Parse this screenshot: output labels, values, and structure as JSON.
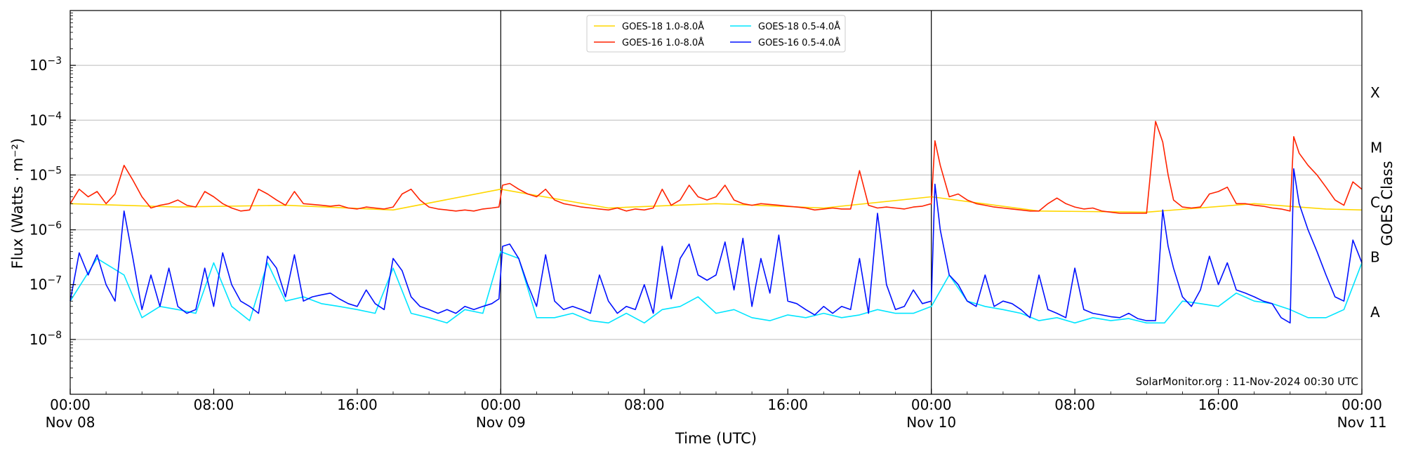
{
  "chart_data": {
    "type": "line",
    "ylabel": "Flux (Watts · m⁻²)",
    "xlabel": "Time (UTC)",
    "right_label": "GOES Class",
    "y_scale": "log",
    "ylim": [
      1e-09,
      0.01
    ],
    "y_ticks": [
      {
        "value": 1e-08,
        "label_base": "10",
        "label_exp": "−8"
      },
      {
        "value": 1e-07,
        "label_base": "10",
        "label_exp": "−7"
      },
      {
        "value": 1e-06,
        "label_base": "10",
        "label_exp": "−6"
      },
      {
        "value": 1e-05,
        "label_base": "10",
        "label_exp": "−5"
      },
      {
        "value": 0.0001,
        "label_base": "10",
        "label_exp": "−4"
      },
      {
        "value": 0.001,
        "label_base": "10",
        "label_exp": "−3"
      }
    ],
    "xlim_hours": [
      0,
      72
    ],
    "x_ticks": [
      {
        "hour": 0,
        "time": "00:00",
        "date": "Nov 08"
      },
      {
        "hour": 8,
        "time": "08:00",
        "date": ""
      },
      {
        "hour": 16,
        "time": "16:00",
        "date": ""
      },
      {
        "hour": 24,
        "time": "00:00",
        "date": "Nov 09"
      },
      {
        "hour": 32,
        "time": "08:00",
        "date": ""
      },
      {
        "hour": 40,
        "time": "16:00",
        "date": ""
      },
      {
        "hour": 48,
        "time": "00:00",
        "date": "Nov 10"
      },
      {
        "hour": 56,
        "time": "08:00",
        "date": ""
      },
      {
        "hour": 64,
        "time": "16:00",
        "date": ""
      },
      {
        "hour": 72,
        "time": "00:00",
        "date": "Nov 11"
      }
    ],
    "day_boundaries_hours": [
      24,
      48
    ],
    "grid": "horizontal",
    "goes_classes": [
      {
        "label": "A",
        "flux": 3.16e-08
      },
      {
        "label": "B",
        "flux": 3.16e-07
      },
      {
        "label": "C",
        "flux": 3.16e-06
      },
      {
        "label": "M",
        "flux": 3.16e-05
      },
      {
        "label": "X",
        "flux": 0.000316
      }
    ],
    "legend_position": "top-center",
    "credit": "SolarMonitor.org : 11-Nov-2024 00:30 UTC",
    "series": [
      {
        "name": "GOES-18 1.0-8.0Å",
        "color": "#ffd700",
        "x": [
          0,
          6,
          12,
          18,
          24,
          30,
          36,
          42,
          48,
          54,
          60,
          66,
          70,
          72
        ],
        "y": [
          3e-06,
          2.6e-06,
          2.8e-06,
          2.3e-06,
          5.5e-06,
          2.5e-06,
          3e-06,
          2.5e-06,
          4e-06,
          2.2e-06,
          2.1e-06,
          3e-06,
          2.4e-06,
          2.3e-06
        ]
      },
      {
        "name": "GOES-16 1.0-8.0Å",
        "color": "#ff2200",
        "x": [
          0,
          0.5,
          1.0,
          1.5,
          2.0,
          2.5,
          3.0,
          3.5,
          4.0,
          4.5,
          5.0,
          5.5,
          6.0,
          6.5,
          7.0,
          7.5,
          8.0,
          8.5,
          9.0,
          9.5,
          10.0,
          10.5,
          11.0,
          11.5,
          12.0,
          12.5,
          13.0,
          13.5,
          14.0,
          14.5,
          15.0,
          15.5,
          16.0,
          16.5,
          17.0,
          17.5,
          18.0,
          18.5,
          19.0,
          19.5,
          20.0,
          20.5,
          21.0,
          21.5,
          22.0,
          22.5,
          23.0,
          23.5,
          23.9,
          24.1,
          24.5,
          25.0,
          25.5,
          26.0,
          26.5,
          27.0,
          27.5,
          28.0,
          28.5,
          29.0,
          29.5,
          30.0,
          30.5,
          31.0,
          31.5,
          32.0,
          32.5,
          33.0,
          33.5,
          34.0,
          34.5,
          35.0,
          35.5,
          36.0,
          36.5,
          37.0,
          37.5,
          38.0,
          38.5,
          39.0,
          39.5,
          40.0,
          40.5,
          41.0,
          41.5,
          42.0,
          42.5,
          43.0,
          43.5,
          44.0,
          44.5,
          45.0,
          45.5,
          46.0,
          46.5,
          47.0,
          47.5,
          48.0,
          48.2,
          48.5,
          49.0,
          49.5,
          50.0,
          50.5,
          51.0,
          51.5,
          52.0,
          52.5,
          53.0,
          53.5,
          54.0,
          54.5,
          55.0,
          55.5,
          56.0,
          56.5,
          57.0,
          57.5,
          58.0,
          58.5,
          59.0,
          59.5,
          60.0,
          60.5,
          60.9,
          61.2,
          61.5,
          62.0,
          62.5,
          63.0,
          63.5,
          64.0,
          64.5,
          65.0,
          65.5,
          66.0,
          66.5,
          67.0,
          67.5,
          68.0,
          68.2,
          68.5,
          69.0,
          69.5,
          70.0,
          70.5,
          71.0,
          71.5,
          72.0
        ],
        "y": [
          3e-06,
          5.5e-06,
          4e-06,
          5e-06,
          3e-06,
          4.5e-06,
          1.5e-05,
          8e-06,
          4e-06,
          2.5e-06,
          2.8e-06,
          3e-06,
          3.5e-06,
          2.8e-06,
          2.6e-06,
          5e-06,
          4e-06,
          3e-06,
          2.5e-06,
          2.2e-06,
          2.3e-06,
          5.5e-06,
          4.5e-06,
          3.5e-06,
          2.8e-06,
          5e-06,
          3e-06,
          2.9e-06,
          2.8e-06,
          2.7e-06,
          2.8e-06,
          2.5e-06,
          2.4e-06,
          2.6e-06,
          2.5e-06,
          2.4e-06,
          2.6e-06,
          4.5e-06,
          5.5e-06,
          3.5e-06,
          2.6e-06,
          2.4e-06,
          2.3e-06,
          2.2e-06,
          2.3e-06,
          2.2e-06,
          2.4e-06,
          2.5e-06,
          2.6e-06,
          6.5e-06,
          7e-06,
          5.5e-06,
          4.5e-06,
          4e-06,
          5.5e-06,
          3.5e-06,
          3e-06,
          2.8e-06,
          2.6e-06,
          2.5e-06,
          2.4e-06,
          2.3e-06,
          2.5e-06,
          2.2e-06,
          2.4e-06,
          2.3e-06,
          2.5e-06,
          5.5e-06,
          2.8e-06,
          3.5e-06,
          6.5e-06,
          4e-06,
          3.5e-06,
          4e-06,
          6.5e-06,
          3.5e-06,
          3e-06,
          2.8e-06,
          3e-06,
          2.9e-06,
          2.8e-06,
          2.7e-06,
          2.6e-06,
          2.5e-06,
          2.3e-06,
          2.4e-06,
          2.5e-06,
          2.4e-06,
          2.4e-06,
          1.2e-05,
          2.8e-06,
          2.5e-06,
          2.6e-06,
          2.5e-06,
          2.4e-06,
          2.6e-06,
          2.7e-06,
          3e-06,
          4.2e-05,
          1.5e-05,
          4e-06,
          4.5e-06,
          3.5e-06,
          3e-06,
          2.8e-06,
          2.6e-06,
          2.5e-06,
          2.4e-06,
          2.3e-06,
          2.2e-06,
          2.2e-06,
          3e-06,
          3.8e-06,
          3e-06,
          2.6e-06,
          2.4e-06,
          2.5e-06,
          2.2e-06,
          2.1e-06,
          2e-06,
          2e-06,
          2e-06,
          2e-06,
          9.5e-05,
          4e-05,
          1e-05,
          3.5e-06,
          2.6e-06,
          2.5e-06,
          2.6e-06,
          4.5e-06,
          5e-06,
          6e-06,
          3e-06,
          3e-06,
          2.8e-06,
          2.7e-06,
          2.5e-06,
          2.4e-06,
          2.2e-06,
          5e-05,
          2.5e-05,
          1.5e-05,
          1e-05,
          6e-06,
          3.5e-06,
          2.8e-06,
          7.5e-06,
          5.5e-06
        ]
      },
      {
        "name": "GOES-18 0.5-4.0Å",
        "color": "#00e5ff",
        "x": [
          0,
          1.5,
          3.0,
          4.0,
          5.0,
          6.0,
          7.0,
          8.0,
          9.0,
          10.0,
          11.0,
          12.0,
          13.0,
          14.0,
          15.0,
          16.0,
          17.0,
          18.0,
          19.0,
          20.0,
          21.0,
          22.0,
          23.0,
          24.0,
          25.0,
          26.0,
          27.0,
          28.0,
          29.0,
          30.0,
          31.0,
          32.0,
          33.0,
          34.0,
          35.0,
          36.0,
          37.0,
          38.0,
          39.0,
          40.0,
          41.0,
          42.0,
          43.0,
          44.0,
          45.0,
          46.0,
          47.0,
          48.0,
          49.0,
          50.0,
          51.0,
          52.0,
          53.0,
          54.0,
          55.0,
          56.0,
          57.0,
          58.0,
          59.0,
          60.0,
          61.0,
          62.0,
          63.0,
          64.0,
          65.0,
          66.0,
          67.0,
          68.0,
          69.0,
          70.0,
          71.0,
          72.0
        ],
        "y": [
          5e-08,
          3e-07,
          1.5e-07,
          2.5e-08,
          4e-08,
          3.5e-08,
          3e-08,
          2.5e-07,
          4e-08,
          2.2e-08,
          2.5e-07,
          5e-08,
          6e-08,
          4.5e-08,
          4e-08,
          3.5e-08,
          3e-08,
          2e-07,
          3e-08,
          2.5e-08,
          2e-08,
          3.5e-08,
          3e-08,
          4e-07,
          3e-07,
          2.5e-08,
          2.5e-08,
          3e-08,
          2.2e-08,
          2e-08,
          3e-08,
          2e-08,
          3.5e-08,
          4e-08,
          6e-08,
          3e-08,
          3.5e-08,
          2.5e-08,
          2.2e-08,
          2.8e-08,
          2.5e-08,
          3e-08,
          2.5e-08,
          2.8e-08,
          3.5e-08,
          3e-08,
          3e-08,
          4e-08,
          1.5e-07,
          5e-08,
          4e-08,
          3.5e-08,
          3e-08,
          2.2e-08,
          2.5e-08,
          2e-08,
          2.5e-08,
          2.2e-08,
          2.4e-08,
          2e-08,
          2e-08,
          5e-08,
          4.5e-08,
          4e-08,
          7e-08,
          5e-08,
          4.5e-08,
          3.5e-08,
          2.5e-08,
          2.5e-08,
          3.5e-08,
          2.5e-07
        ]
      },
      {
        "name": "GOES-16 0.5-4.0Å",
        "color": "#0010ff",
        "x": [
          0,
          0.5,
          1.0,
          1.5,
          2.0,
          2.5,
          3.0,
          3.5,
          4.0,
          4.5,
          5.0,
          5.5,
          6.0,
          6.5,
          7.0,
          7.5,
          8.0,
          8.5,
          9.0,
          9.5,
          10.0,
          10.5,
          11.0,
          11.5,
          12.0,
          12.5,
          13.0,
          13.5,
          14.0,
          14.5,
          15.0,
          15.5,
          16.0,
          16.5,
          17.0,
          17.5,
          18.0,
          18.5,
          19.0,
          19.5,
          20.0,
          20.5,
          21.0,
          21.5,
          22.0,
          22.5,
          23.0,
          23.5,
          23.9,
          24.1,
          24.5,
          25.0,
          25.5,
          26.0,
          26.5,
          27.0,
          27.5,
          28.0,
          28.5,
          29.0,
          29.5,
          30.0,
          30.5,
          31.0,
          31.5,
          32.0,
          32.5,
          33.0,
          33.5,
          34.0,
          34.5,
          35.0,
          35.5,
          36.0,
          36.5,
          37.0,
          37.5,
          38.0,
          38.5,
          39.0,
          39.5,
          40.0,
          40.5,
          41.0,
          41.5,
          42.0,
          42.5,
          43.0,
          43.5,
          44.0,
          44.5,
          45.0,
          45.5,
          46.0,
          46.5,
          47.0,
          47.5,
          48.0,
          48.2,
          48.5,
          49.0,
          49.5,
          50.0,
          50.5,
          51.0,
          51.5,
          52.0,
          52.5,
          53.0,
          53.5,
          54.0,
          54.5,
          55.0,
          55.5,
          56.0,
          56.5,
          57.0,
          57.5,
          58.0,
          58.5,
          59.0,
          59.5,
          60.0,
          60.5,
          60.9,
          61.2,
          61.5,
          62.0,
          62.5,
          63.0,
          63.5,
          64.0,
          64.5,
          65.0,
          65.5,
          66.0,
          66.5,
          67.0,
          67.5,
          68.0,
          68.2,
          68.5,
          69.0,
          69.5,
          70.0,
          70.5,
          71.0,
          71.5,
          72.0
        ],
        "y": [
          5e-08,
          3.8e-07,
          1.5e-07,
          3.5e-07,
          1e-07,
          5e-08,
          2.2e-06,
          3e-07,
          3.5e-08,
          1.5e-07,
          4e-08,
          2e-07,
          4e-08,
          3e-08,
          3.5e-08,
          2e-07,
          4e-08,
          3.8e-07,
          1e-07,
          5e-08,
          4e-08,
          3e-08,
          3.3e-07,
          2e-07,
          6e-08,
          3.5e-07,
          5e-08,
          6e-08,
          6.5e-08,
          7e-08,
          5.5e-08,
          4.5e-08,
          4e-08,
          8e-08,
          4.5e-08,
          3.5e-08,
          3e-07,
          1.8e-07,
          6e-08,
          4e-08,
          3.5e-08,
          3e-08,
          3.5e-08,
          3e-08,
          4e-08,
          3.5e-08,
          4e-08,
          4.5e-08,
          5.5e-08,
          5e-07,
          5.5e-07,
          3e-07,
          1e-07,
          4e-08,
          3.5e-07,
          5e-08,
          3.5e-08,
          4e-08,
          3.5e-08,
          3e-08,
          1.5e-07,
          5e-08,
          3e-08,
          4e-08,
          3.5e-08,
          1e-07,
          3e-08,
          5e-07,
          5.5e-08,
          3e-07,
          5.5e-07,
          1.5e-07,
          1.2e-07,
          1.5e-07,
          6e-07,
          8e-08,
          7e-07,
          4e-08,
          3e-07,
          7e-08,
          8e-07,
          5e-08,
          4.5e-08,
          3.5e-08,
          2.8e-08,
          4e-08,
          3e-08,
          4e-08,
          3.5e-08,
          3e-07,
          3e-08,
          2e-06,
          1e-07,
          3.5e-08,
          4e-08,
          8e-08,
          4.5e-08,
          5e-08,
          6.8e-06,
          1e-06,
          1.5e-07,
          1e-07,
          5e-08,
          4e-08,
          1.5e-07,
          4e-08,
          5e-08,
          4.5e-08,
          3.5e-08,
          2.5e-08,
          1.5e-07,
          3.5e-08,
          3e-08,
          2.5e-08,
          2e-07,
          3.5e-08,
          3e-08,
          2.8e-08,
          2.6e-08,
          2.5e-08,
          3e-08,
          2.4e-08,
          2.2e-08,
          2.2e-08,
          2.3e-06,
          5e-07,
          2e-07,
          6e-08,
          4e-08,
          8e-08,
          3.3e-07,
          1e-07,
          2.5e-07,
          8e-08,
          7e-08,
          6e-08,
          5e-08,
          4.5e-08,
          2.5e-08,
          2e-08,
          1.3e-05,
          3e-06,
          1e-06,
          4e-07,
          1.5e-07,
          6e-08,
          5e-08,
          6.5e-07,
          2.5e-07
        ]
      }
    ]
  }
}
